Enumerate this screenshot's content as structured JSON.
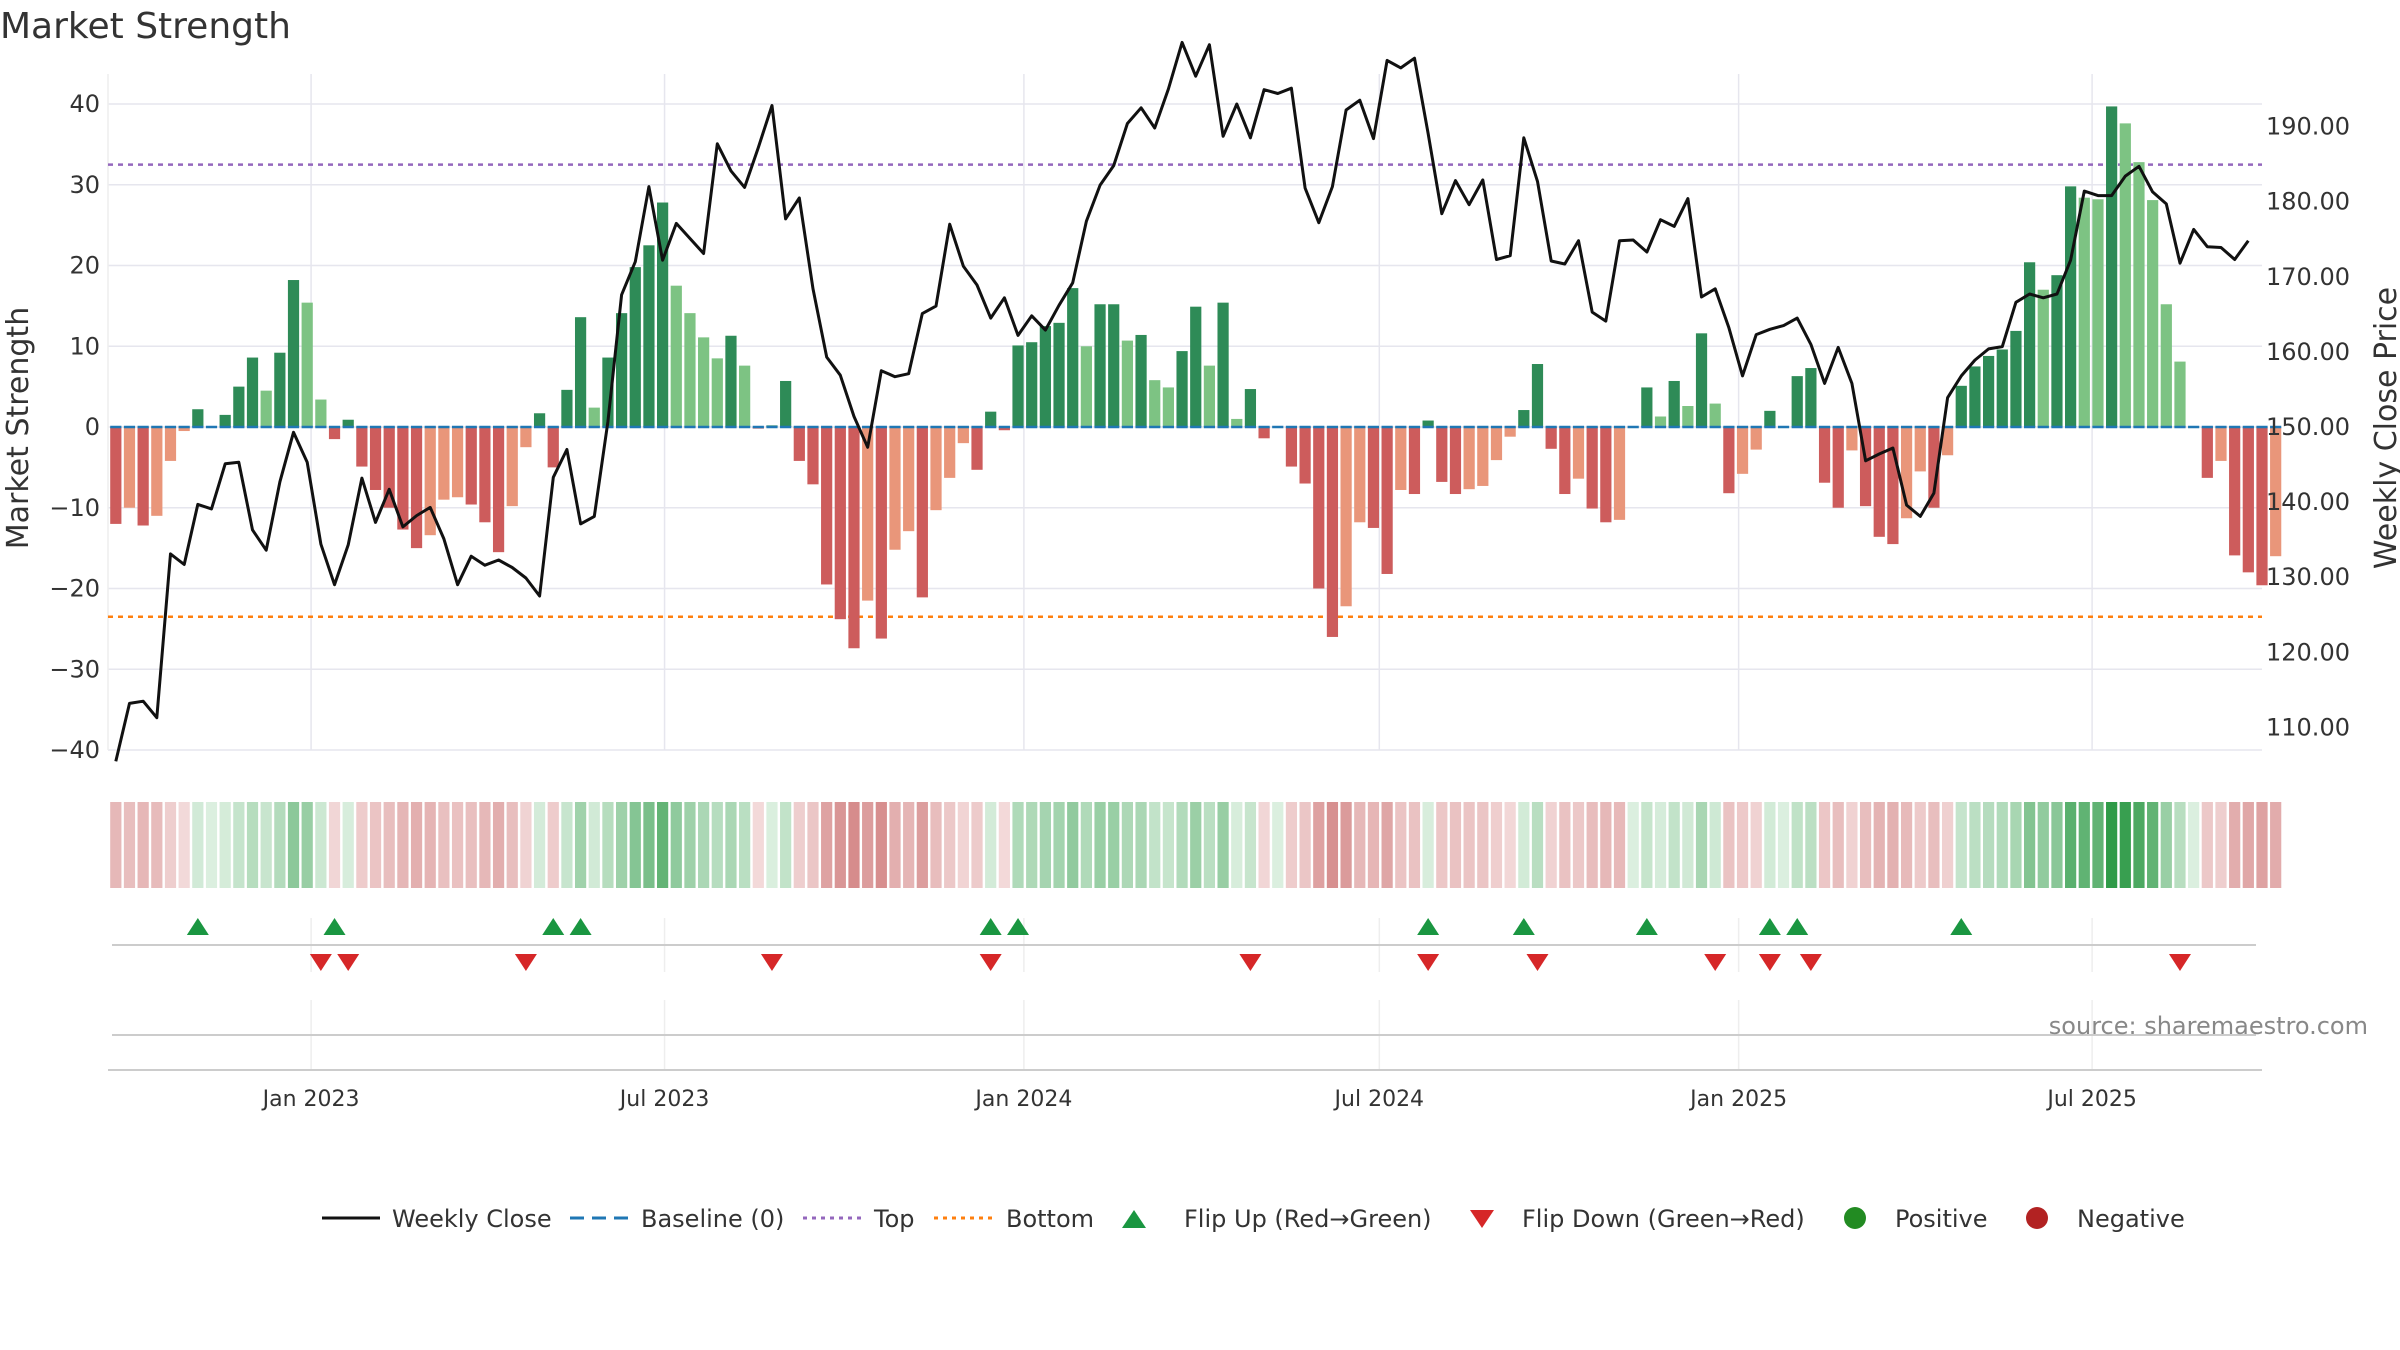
{
  "chart_data": {
    "type": "bar",
    "title": "Market Strength",
    "ylabel_left": "Market Strength",
    "ylabel_right": "Weekly Close Price",
    "source": "source: sharemaestro.com",
    "x_start": "2022-09-23",
    "x_range": [
      "2022-09-19",
      "2025-09-26"
    ],
    "ylim_left": [
      -40,
      40
    ],
    "ylim_right": [
      107,
      193
    ],
    "yticks_left": [
      40,
      30,
      20,
      10,
      0,
      -10,
      -20,
      -30,
      -40
    ],
    "ytick_labels_left": [
      "40",
      "30",
      "20",
      "10",
      "0",
      "−10",
      "−20",
      "−30",
      "−40"
    ],
    "yticks_right": [
      190,
      180,
      170,
      160,
      150,
      140,
      130,
      120,
      110
    ],
    "ytick_labels_right": [
      "190.00",
      "180.00",
      "170.00",
      "160.00",
      "150.00",
      "140.00",
      "130.00",
      "120.00",
      "110.00"
    ],
    "xticks": [
      {
        "label": "Jan 2023",
        "date": "2023-01-01"
      },
      {
        "label": "Jul 2023",
        "date": "2023-07-01"
      },
      {
        "label": "Jan 2024",
        "date": "2024-01-01"
      },
      {
        "label": "Jul 2024",
        "date": "2024-07-01"
      },
      {
        "label": "Jan 2025",
        "date": "2025-01-01"
      },
      {
        "label": "Jul 2025",
        "date": "2025-07-01"
      }
    ],
    "top_threshold": 32.5,
    "bottom_threshold": -23.5,
    "baseline": 0,
    "strength": [
      -12,
      -10,
      -12.2,
      -11,
      -4.2,
      -0.5,
      2.2,
      0,
      1.5,
      5,
      8.6,
      4.5,
      9.2,
      18.2,
      15.4,
      3.4,
      -1.5,
      0.9,
      -4.9,
      -7.8,
      -10,
      -12.7,
      -15,
      -13.4,
      -9,
      -8.7,
      -9.6,
      -11.8,
      -15.5,
      -9.8,
      -2.5,
      1.7,
      -5,
      4.6,
      13.6,
      2.4,
      8.6,
      14.1,
      19.8,
      22.5,
      27.8,
      17.5,
      14.1,
      11.1,
      8.5,
      11.3,
      7.6,
      -0.2,
      0.2,
      5.7,
      -4.2,
      -7.1,
      -19.5,
      -23.8,
      -27.4,
      -21.5,
      -26.2,
      -15.2,
      -12.9,
      -21.1,
      -10.3,
      -6.3,
      -2,
      -5.3,
      1.9,
      -0.4,
      10.1,
      10.5,
      12.5,
      12.9,
      17.2,
      10,
      15.2,
      15.2,
      10.7,
      11.4,
      5.8,
      4.9,
      9.4,
      14.9,
      7.6,
      15.4,
      1,
      4.7,
      -1.4,
      0,
      -4.9,
      -7,
      -20,
      -26,
      -22.2,
      -11.8,
      -12.5,
      -18.2,
      -7.8,
      -8.3,
      0.8,
      -6.8,
      -8.3,
      -7.7,
      -7.3,
      -4.1,
      -1.2,
      2.1,
      7.8,
      -2.7,
      -8.3,
      -6.4,
      -10.1,
      -11.8,
      -11.5,
      0,
      4.9,
      1.3,
      5.7,
      2.6,
      11.6,
      2.9,
      -8.2,
      -5.8,
      -2.8,
      2,
      0,
      6.3,
      7.3,
      -6.9,
      -10,
      -2.9,
      -9.8,
      -13.6,
      -14.5,
      -11.3,
      -5.5,
      -10,
      -3.5,
      5.1,
      7.5,
      8.8,
      9.6,
      11.9,
      20.4,
      17,
      18.8,
      29.8,
      28.4,
      28.2,
      39.7,
      37.6,
      32.8,
      28.1,
      15.2,
      8.1,
      0,
      -6.3,
      -4.2,
      -15.9,
      -18,
      -19.6,
      -16
    ],
    "close": [
      105.5,
      113.2,
      113.5,
      111.3,
      133.1,
      131.7,
      139.7,
      139.1,
      145.1,
      145.3,
      136.3,
      133.6,
      142.7,
      149.3,
      145.3,
      134.4,
      129,
      134.3,
      143.2,
      137.3,
      141.7,
      136.7,
      138.2,
      139.3,
      135.1,
      129,
      132.8,
      131.6,
      132.3,
      131.3,
      129.9,
      127.5,
      143.3,
      147,
      137.1,
      138.1,
      150.7,
      167.6,
      172,
      182,
      172.2,
      177.1,
      175.1,
      173.1,
      187.7,
      184.1,
      181.9,
      187.2,
      192.8,
      177.7,
      180.5,
      168.4,
      159.3,
      156.9,
      151.4,
      147.3,
      157.5,
      156.7,
      157.1,
      165.1,
      166.1,
      177,
      171.4,
      168.9,
      164.5,
      167.2,
      162.2,
      164.8,
      162.9,
      166.2,
      169.2,
      177.4,
      182.2,
      184.8,
      190.4,
      192.5,
      189.8,
      195,
      201.2,
      196.7,
      200.9,
      188.7,
      193,
      188.5,
      194.9,
      194.4,
      195.1,
      181.8,
      177.2,
      182,
      192.2,
      193.5,
      188.4,
      198.8,
      197.8,
      199.1,
      189.1,
      178.4,
      182.8,
      179.6,
      182.9,
      172.3,
      172.8,
      188.5,
      182.7,
      172.1,
      171.7,
      174.8,
      165.3,
      164.1,
      174.8,
      174.9,
      173.3,
      177.6,
      176.7,
      180.4,
      167.3,
      168.4,
      163.2,
      156.8,
      162.3,
      163,
      163.5,
      164.5,
      161,
      155.8,
      160.6,
      155.8,
      145.5,
      146.4,
      147.2,
      139.6,
      138.1,
      141.2,
      153.9,
      156.8,
      158.9,
      160.4,
      160.7,
      166.6,
      167.7,
      167.2,
      167.7,
      172.2,
      181.4,
      180.8,
      180.8,
      183.4,
      184.7,
      181.3,
      179.7,
      171.8,
      176.3,
      174,
      173.9,
      172.3,
      174.8
    ],
    "flip_up_weeks": [
      6,
      16,
      32,
      34,
      64,
      66,
      96,
      103,
      112,
      121,
      123,
      135
    ],
    "flip_down_weeks": [
      15,
      17,
      30,
      48,
      64,
      83,
      96,
      104,
      117,
      121,
      124,
      151
    ],
    "colors": {
      "strong_green": "#2e8b57",
      "light_green": "#7dc383",
      "strong_red": "#cd5c5c",
      "light_red": "#e9967a",
      "line": "#111111",
      "baseline": "#1f77b4",
      "top": "#9467bd",
      "bottom": "#ff7f0e",
      "flip_up": "#1a9641",
      "flip_down": "#d62728",
      "positive": "#228b22",
      "negative": "#b22222",
      "grid": "#e6e6ee"
    },
    "legend": [
      {
        "key": "weekly-close",
        "label": "Weekly Close"
      },
      {
        "key": "baseline",
        "label": "Baseline (0)"
      },
      {
        "key": "top",
        "label": "Top"
      },
      {
        "key": "bottom",
        "label": "Bottom"
      },
      {
        "key": "flip-up",
        "label": "Flip Up (Red→Green)"
      },
      {
        "key": "flip-down",
        "label": "Flip Down (Green→Red)"
      },
      {
        "key": "positive",
        "label": "Positive"
      },
      {
        "key": "negative",
        "label": "Negative"
      }
    ]
  }
}
